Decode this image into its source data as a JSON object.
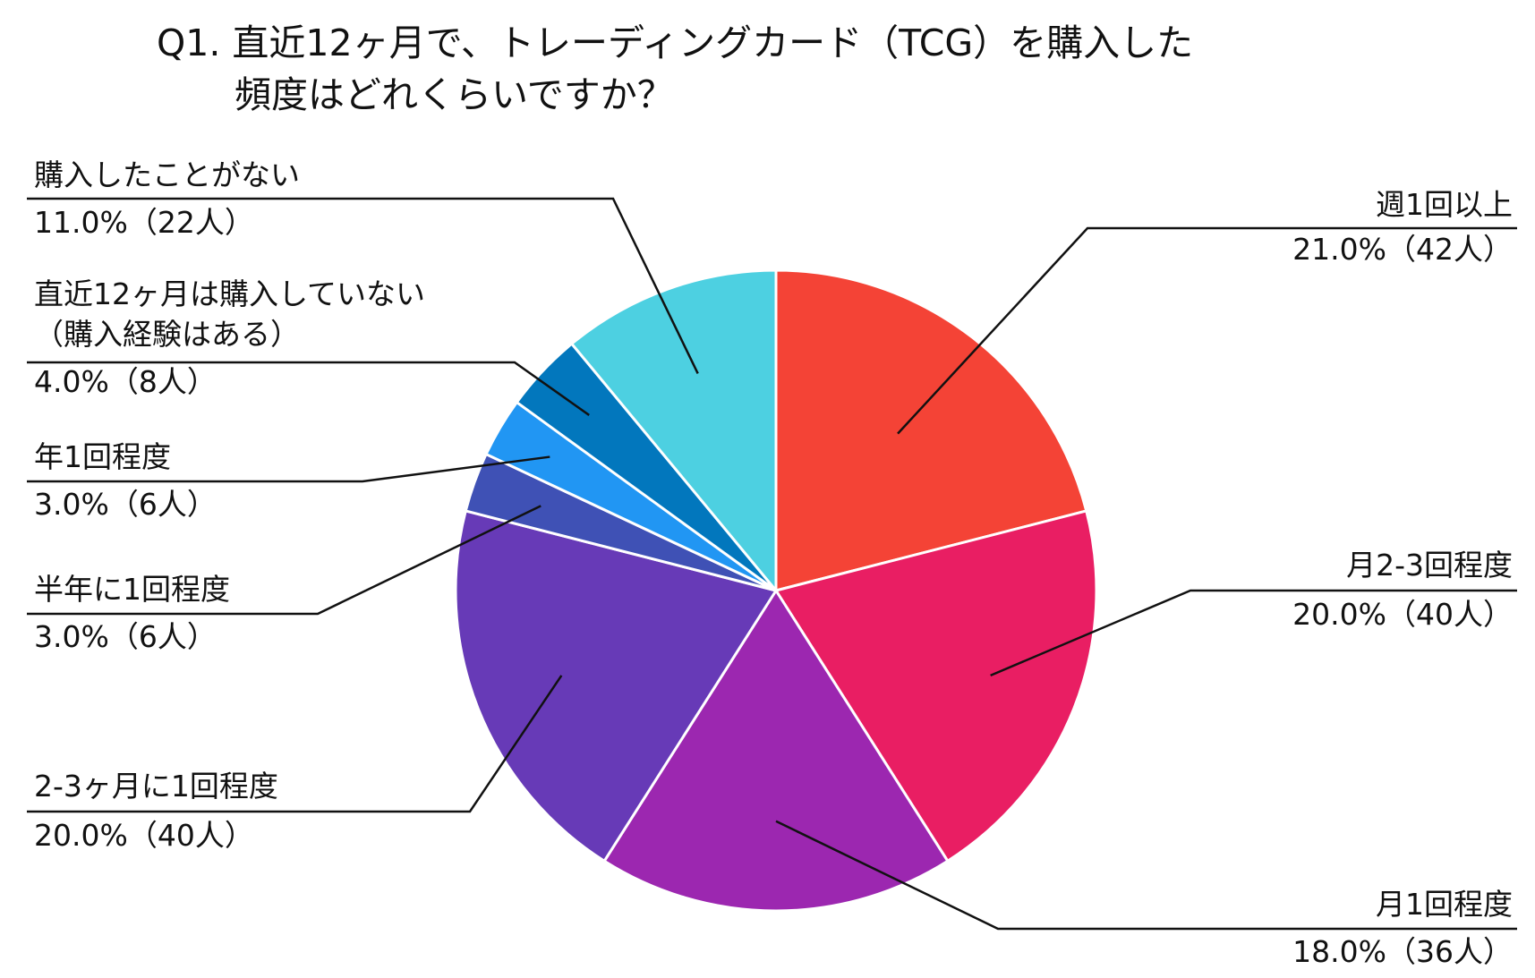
{
  "chart_data": {
    "type": "pie",
    "title_lines": [
      "Q1. 直近12ヶ月で、トレーディングカード（TCG）を購入した",
      "頻度はどれくらいですか？"
    ],
    "slices": [
      {
        "label": "週1回以上",
        "value": 21.0,
        "value_text": "21.0%（42人）",
        "count": 42,
        "color": "#f44336"
      },
      {
        "label": "月2-3回程度",
        "value": 20.0,
        "value_text": "20.0%（40人）",
        "count": 40,
        "color": "#e91e63"
      },
      {
        "label": "月1回程度",
        "value": 18.0,
        "value_text": "18.0%（36人）",
        "count": 36,
        "color": "#9c27b0"
      },
      {
        "label": "2-3ヶ月に1回程度",
        "value": 20.0,
        "value_text": "20.0%（40人）",
        "count": 40,
        "color": "#673ab7"
      },
      {
        "label": "半年に1回程度",
        "value": 3.0,
        "value_text": "3.0%（6人）",
        "count": 6,
        "color": "#3f51b5"
      },
      {
        "label": "年1回程度",
        "value": 3.0,
        "value_text": "3.0%（6人）",
        "count": 6,
        "color": "#2196f3"
      },
      {
        "label": "直近12ヶ月は購入していない\n（購入経験はある）",
        "value": 4.0,
        "value_text": "4.0%（8人）",
        "count": 8,
        "color": "#0277bd"
      },
      {
        "label": "購入したことがない",
        "value": 11.0,
        "value_text": "11.0%（22人）",
        "count": 22,
        "color": "#4dd0e1"
      }
    ]
  }
}
